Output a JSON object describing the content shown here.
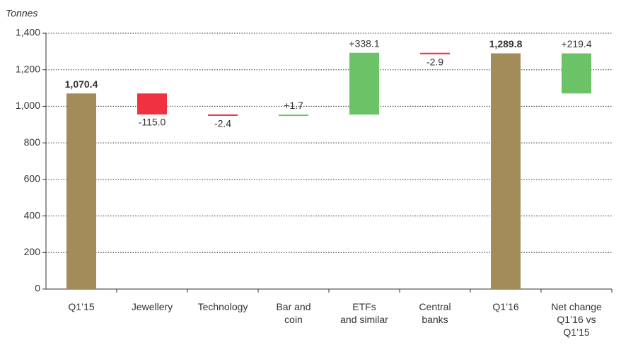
{
  "chart_data": {
    "type": "waterfall",
    "y_label": "Tonnes",
    "categories": [
      "Q1’15",
      "Jewellery",
      "Technology",
      "Bar and\ncoin",
      "ETFs\nand similar",
      "Central\nbanks",
      "Q1’16",
      "Net change\nQ1’16 vs\nQ1’15"
    ],
    "values": [
      1070.4,
      -115.0,
      -2.4,
      1.7,
      338.1,
      -2.9,
      1289.8,
      219.4
    ],
    "value_labels": [
      "1,070.4",
      "-115.0",
      "-2.4",
      "+1.7",
      "+338.1",
      "-2.9",
      "1,289.8",
      "+219.4"
    ],
    "kinds": [
      "total",
      "delta",
      "delta",
      "delta",
      "delta",
      "delta",
      "total",
      "net"
    ],
    "colors": [
      "#a38c5a",
      "#f0313f",
      "#f0313f",
      "#6cc267",
      "#6cc267",
      "#f0313f",
      "#a38c5a",
      "#6cc267"
    ],
    "ylim": [
      0,
      1400
    ],
    "yticks": [
      0,
      200,
      400,
      600,
      800,
      {
        "value": 1000,
        "label": "1,000"
      },
      {
        "value": 1200,
        "label": "1,200"
      },
      {
        "value": 1400,
        "label": "1,400"
      }
    ],
    "grid": true
  }
}
